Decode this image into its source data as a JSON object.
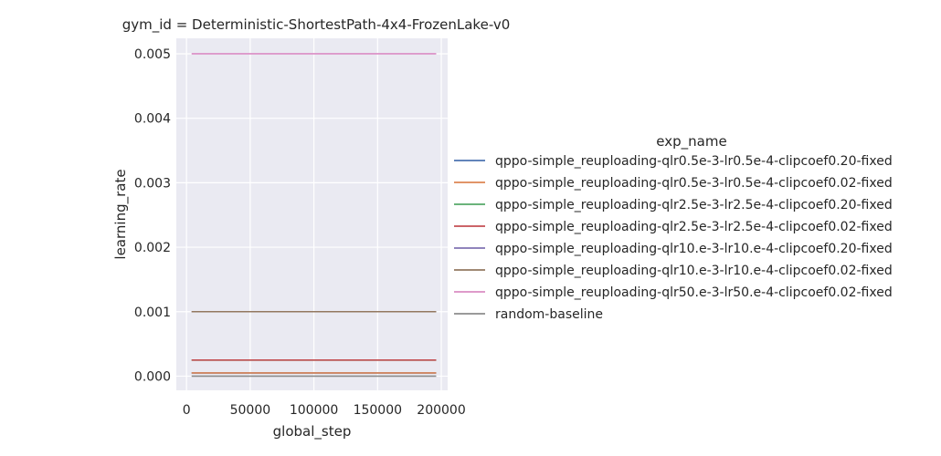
{
  "chart_data": {
    "type": "line",
    "title": "gym_id = Deterministic-ShortestPath-4x4-FrozenLake-v0",
    "xlabel": "global_step",
    "ylabel": "learning_rate",
    "xlim": [
      -8000,
      205000
    ],
    "ylim": [
      -0.00022,
      0.00524
    ],
    "xticks": [
      0,
      50000,
      100000,
      150000,
      200000
    ],
    "xtick_labels": [
      "0",
      "50000",
      "100000",
      "150000",
      "200000"
    ],
    "yticks": [
      0,
      0.001,
      0.002,
      0.003,
      0.004,
      0.005
    ],
    "ytick_labels": [
      "0.000",
      "0.001",
      "0.002",
      "0.003",
      "0.004",
      "0.005"
    ],
    "grid": true,
    "legend": {
      "title": "exp_name",
      "placement": "right"
    },
    "series": [
      {
        "name": "qppo-simple_reuploading-qlr0.5e-3-lr0.5e-4-clipcoef0.20-fixed",
        "color": "#4c72b0",
        "x": [
          4000,
          196000
        ],
        "y": [
          5e-05,
          5e-05
        ]
      },
      {
        "name": "qppo-simple_reuploading-qlr0.5e-3-lr0.5e-4-clipcoef0.02-fixed",
        "color": "#dd8452",
        "x": [
          4000,
          196000
        ],
        "y": [
          5e-05,
          5e-05
        ]
      },
      {
        "name": "qppo-simple_reuploading-qlr2.5e-3-lr2.5e-4-clipcoef0.20-fixed",
        "color": "#55a868",
        "x": [
          4000,
          196000
        ],
        "y": [
          0.00025,
          0.00025
        ]
      },
      {
        "name": "qppo-simple_reuploading-qlr2.5e-3-lr2.5e-4-clipcoef0.02-fixed",
        "color": "#c44e52",
        "x": [
          4000,
          196000
        ],
        "y": [
          0.00025,
          0.00025
        ]
      },
      {
        "name": "qppo-simple_reuploading-qlr10.e-3-lr10.e-4-clipcoef0.20-fixed",
        "color": "#8172b3",
        "x": [
          4000,
          196000
        ],
        "y": [
          0.001,
          0.001
        ]
      },
      {
        "name": "qppo-simple_reuploading-qlr10.e-3-lr10.e-4-clipcoef0.02-fixed",
        "color": "#937860",
        "x": [
          4000,
          196000
        ],
        "y": [
          0.001,
          0.001
        ]
      },
      {
        "name": "qppo-simple_reuploading-qlr50.e-3-lr50.e-4-clipcoef0.02-fixed",
        "color": "#da8bc3",
        "x": [
          4000,
          196000
        ],
        "y": [
          0.005,
          0.005
        ]
      },
      {
        "name": "random-baseline",
        "color": "#8c8c8c",
        "x": [
          4000,
          196000
        ],
        "y": [
          0.0,
          0.0
        ]
      }
    ]
  }
}
